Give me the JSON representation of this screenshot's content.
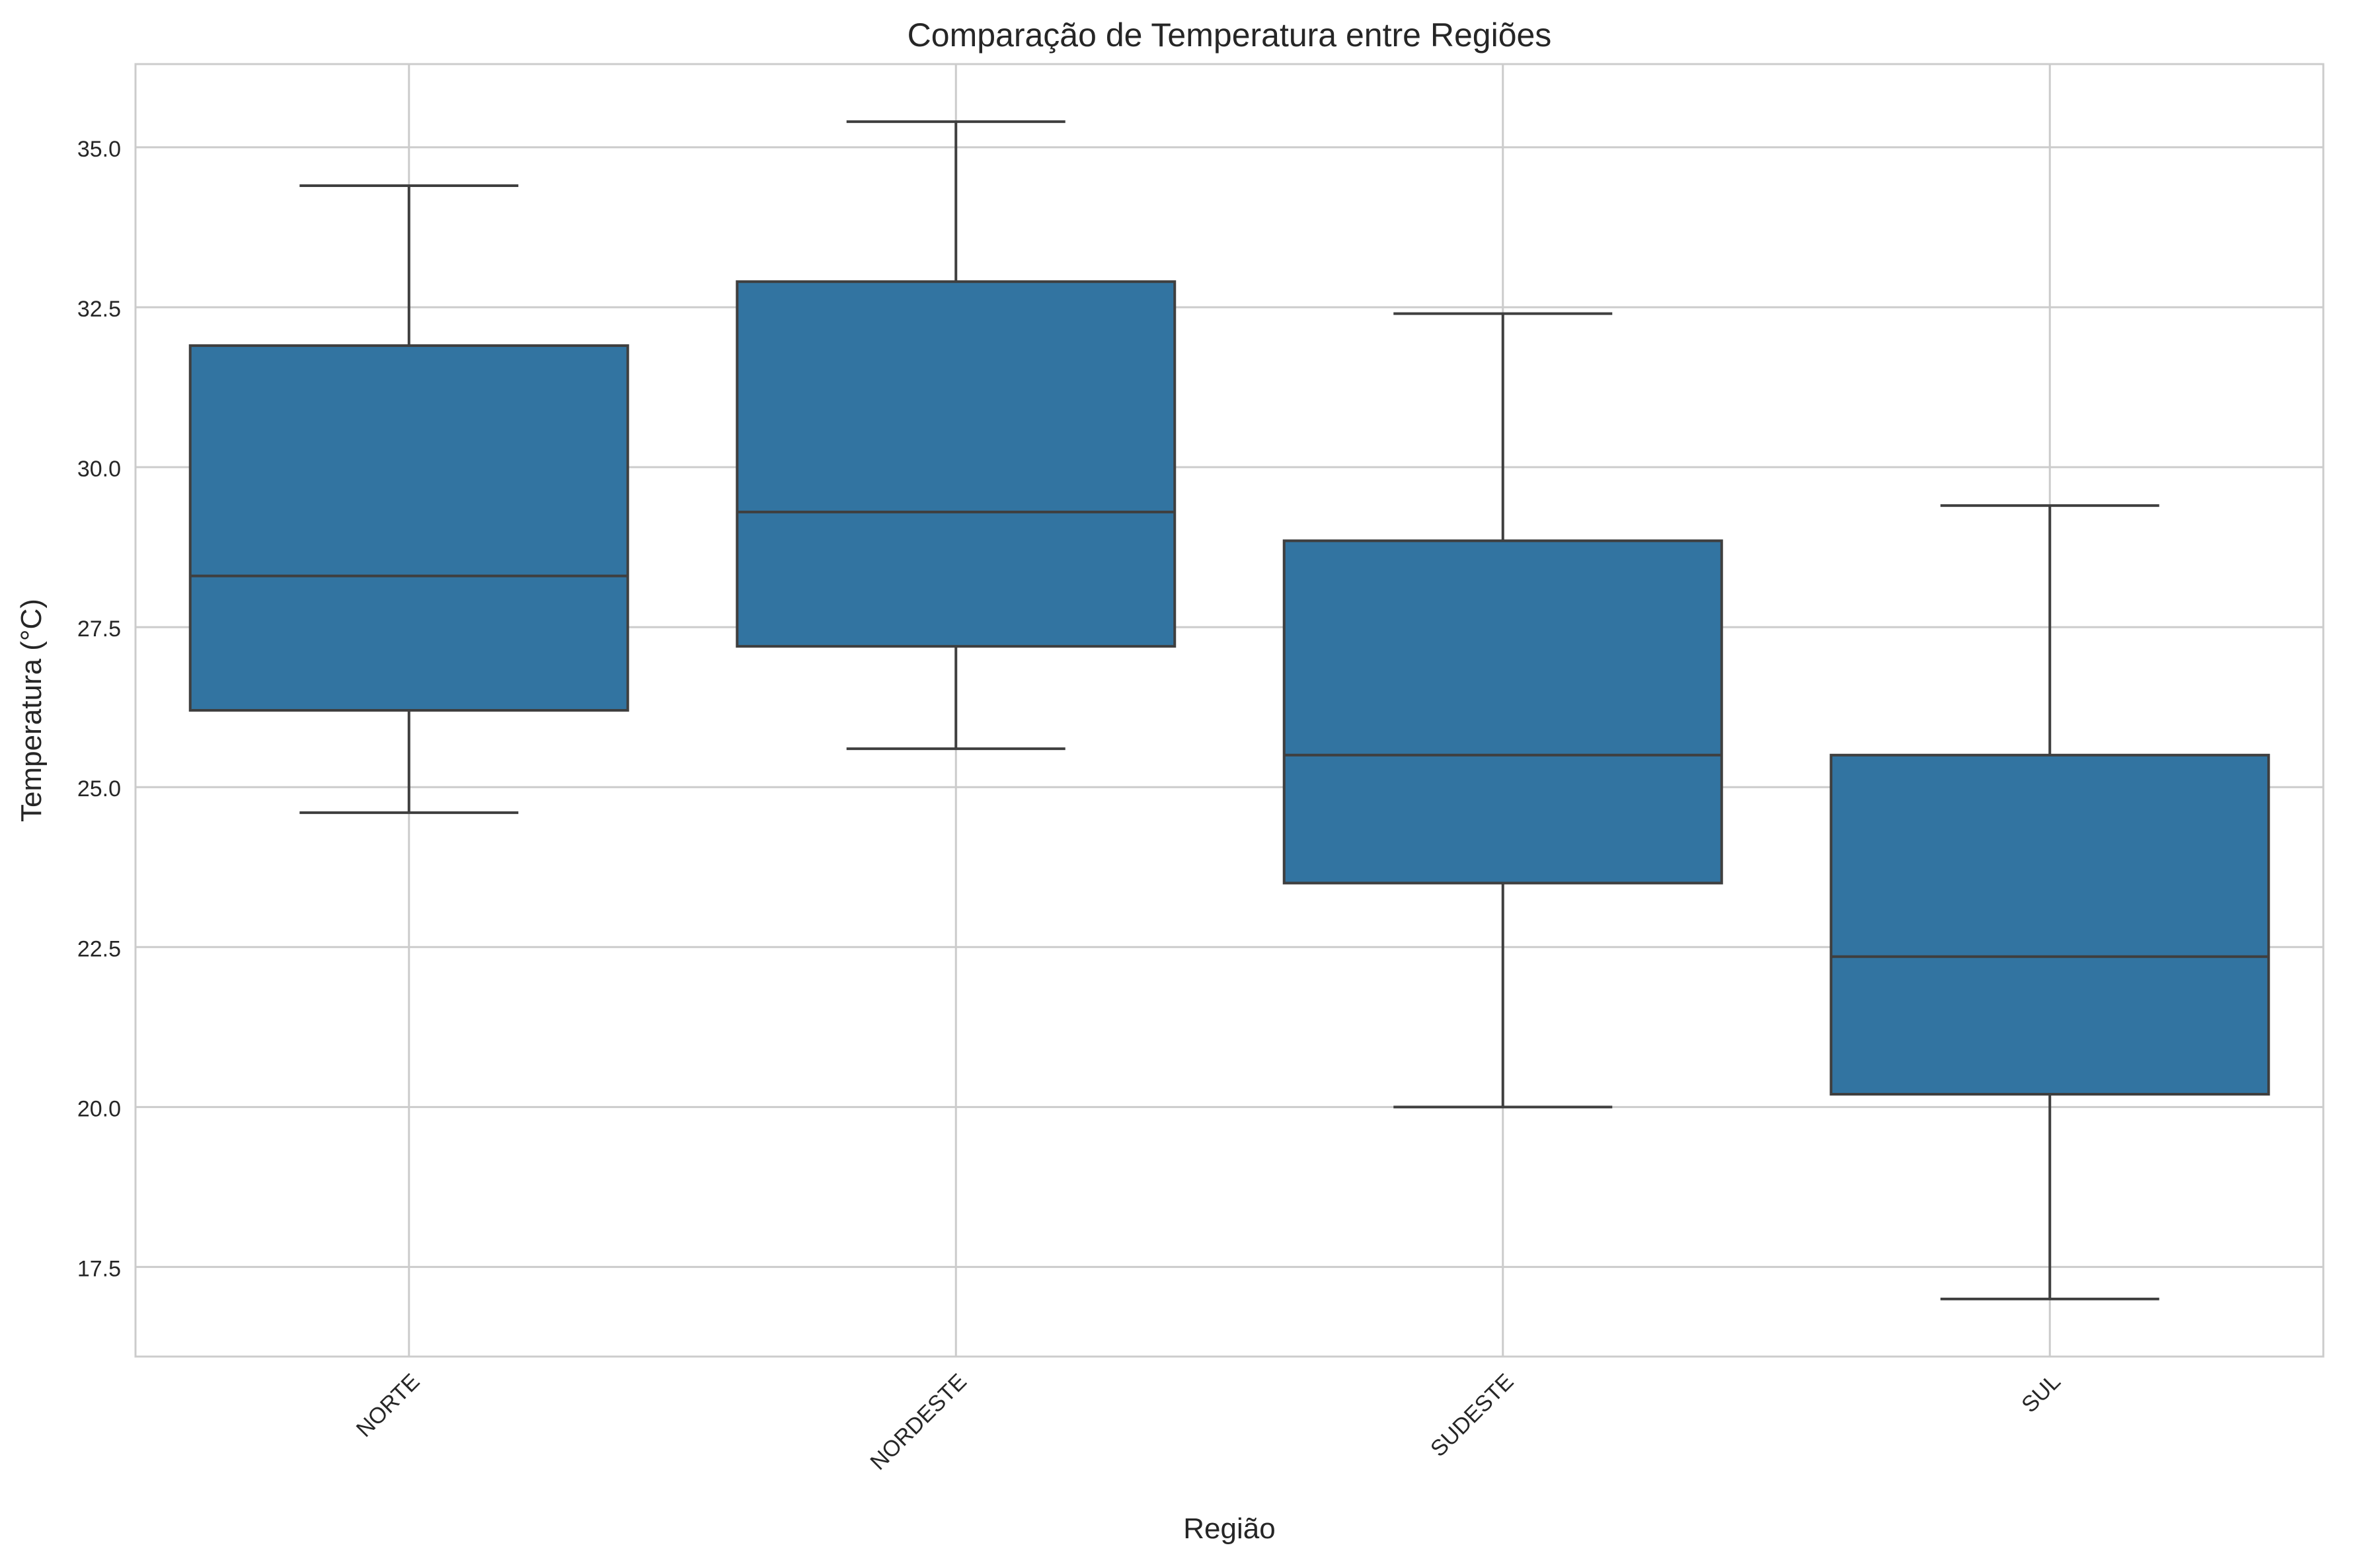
{
  "chart_data": {
    "type": "boxplot",
    "title": "Comparação de Temperatura entre Regiões",
    "xlabel": "Região",
    "ylabel": "Temperatura (°C)",
    "ylim": [
      16.1,
      36.3
    ],
    "yticks": [
      17.5,
      20.0,
      22.5,
      25.0,
      27.5,
      30.0,
      32.5,
      35.0
    ],
    "ytick_labels": [
      "17.5",
      "20.0",
      "22.5",
      "25.0",
      "27.5",
      "30.0",
      "32.5",
      "35.0"
    ],
    "grid": true,
    "box_color": "#3274a1",
    "line_color": "#3f3f3f",
    "grid_color": "#cccccc",
    "categories": [
      "NORTE",
      "NORDESTE",
      "SUDESTE",
      "SUL"
    ],
    "boxes": [
      {
        "category": "NORTE",
        "whisker_low": 24.6,
        "q1": 26.2,
        "median": 28.3,
        "q3": 31.9,
        "whisker_high": 34.4
      },
      {
        "category": "NORDESTE",
        "whisker_low": 25.6,
        "q1": 27.2,
        "median": 29.3,
        "q3": 32.9,
        "whisker_high": 35.4
      },
      {
        "category": "SUDESTE",
        "whisker_low": 20.0,
        "q1": 23.5,
        "median": 25.5,
        "q3": 28.85,
        "whisker_high": 32.4
      },
      {
        "category": "SUL",
        "whisker_low": 17.0,
        "q1": 20.2,
        "median": 22.35,
        "q3": 25.5,
        "whisker_high": 29.4
      }
    ]
  }
}
